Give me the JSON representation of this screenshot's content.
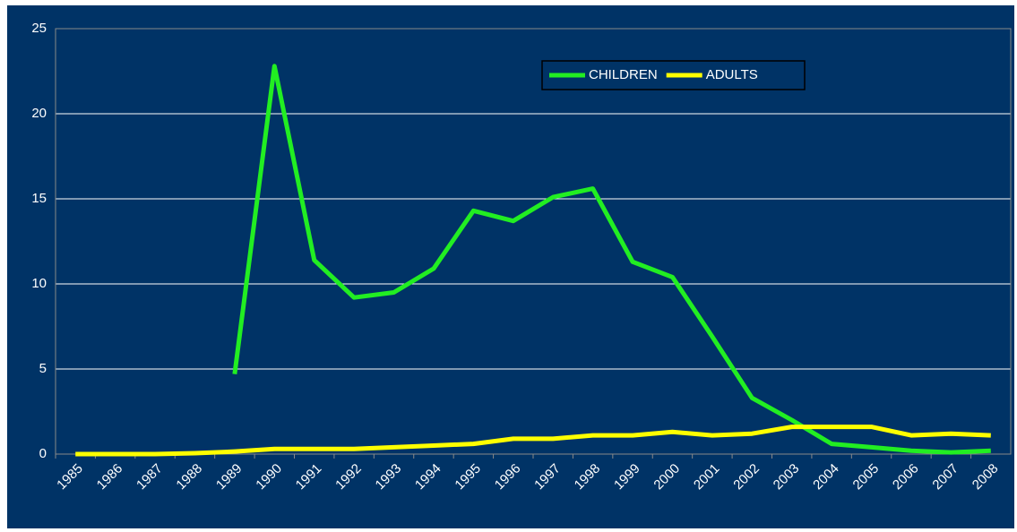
{
  "chart_data": {
    "type": "line",
    "categories": [
      "1985",
      "1986",
      "1987",
      "1988",
      "1989",
      "1990",
      "1991",
      "1992",
      "1993",
      "1994",
      "1995",
      "1996",
      "1997",
      "1998",
      "1999",
      "2000",
      "2001",
      "2002",
      "2003",
      "2004",
      "2005",
      "2006",
      "2007",
      "2008"
    ],
    "series": [
      {
        "name": "CHILDREN",
        "color": "#22ee22",
        "values": [
          null,
          null,
          null,
          null,
          4.7,
          22.8,
          11.4,
          9.2,
          9.5,
          10.9,
          14.3,
          13.7,
          15.1,
          15.6,
          11.3,
          10.4,
          6.9,
          3.3,
          2.0,
          0.6,
          0.4,
          0.2,
          0.1,
          0.2
        ]
      },
      {
        "name": "ADULTS",
        "color": "#ffff00",
        "values": [
          0,
          0,
          0,
          0.05,
          0.15,
          0.3,
          0.3,
          0.3,
          0.4,
          0.5,
          0.6,
          0.9,
          0.9,
          1.1,
          1.1,
          1.3,
          1.1,
          1.2,
          1.6,
          1.6,
          1.6,
          1.1,
          1.2,
          1.1
        ]
      }
    ],
    "ylim": [
      0,
      25
    ],
    "yticks": [
      0,
      5,
      10,
      15,
      20,
      25
    ],
    "grid": true,
    "legend": "top"
  }
}
